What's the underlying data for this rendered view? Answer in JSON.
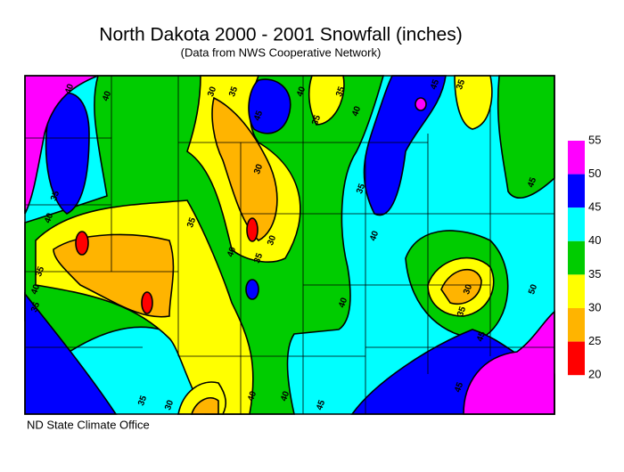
{
  "title": "North Dakota 2000 - 2001 Snowfall (inches)",
  "subtitle": "(Data from NWS Cooperative Network)",
  "credit": "ND State Climate Office",
  "legend": {
    "levels": [
      55,
      50,
      45,
      40,
      35,
      30,
      25,
      20
    ],
    "colors": [
      "#ff00ff",
      "#0000ff",
      "#00ffff",
      "#00cc00",
      "#ffff00",
      "#ffb400",
      "#ff0000"
    ]
  },
  "contour_labels": [
    40,
    40,
    30,
    35,
    45,
    40,
    35,
    35,
    40,
    35,
    40,
    35,
    40,
    35,
    35,
    30,
    30,
    35,
    40,
    35,
    40,
    40,
    30,
    35,
    45,
    45,
    35,
    30,
    40,
    40,
    45,
    45,
    50,
    45,
    35
  ]
}
